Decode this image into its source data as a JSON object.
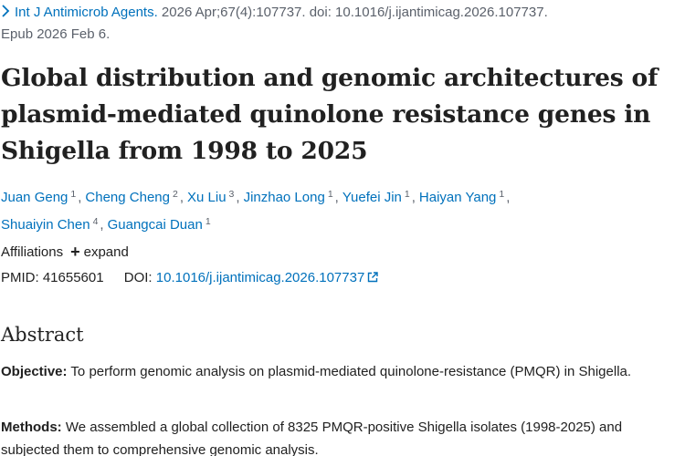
{
  "citation": {
    "journal": "Int J Antimicrob Agents.",
    "details_line1": " 2026 Apr;67(4):107737. doi: 10.1016/j.ijantimicag.2026.107737.",
    "details_line2": "Epub 2026 Feb 6."
  },
  "article": {
    "title": "Global distribution and genomic architectures of plasmid-mediated quinolone resistance genes in Shigella from 1998 to 2025"
  },
  "authors": [
    {
      "name": "Juan Geng",
      "aff": "1"
    },
    {
      "name": "Cheng Cheng",
      "aff": "2"
    },
    {
      "name": "Xu Liu",
      "aff": "3"
    },
    {
      "name": "Jinzhao Long",
      "aff": "1"
    },
    {
      "name": "Yuefei Jin",
      "aff": "1"
    },
    {
      "name": "Haiyan Yang",
      "aff": "1"
    },
    {
      "name": "Shuaiyin Chen",
      "aff": "4"
    },
    {
      "name": "Guangcai Duan",
      "aff": "1"
    }
  ],
  "affiliations": {
    "label": "Affiliations",
    "expand_label": "expand"
  },
  "ids": {
    "pmid_label": "PMID:",
    "pmid": "41655601",
    "doi_label": "DOI:",
    "doi": "10.1016/j.ijantimicag.2026.107737"
  },
  "abstract": {
    "heading": "Abstract",
    "objective_label": "Objective:",
    "objective_text": " To perform genomic analysis on plasmid-mediated quinolone-resistance (PMQR) in Shigella.",
    "methods_label": "Methods:",
    "methods_text": " We assembled a global collection of 8325 PMQR-positive Shigella isolates (1998-2025) and subjected them to comprehensive genomic analysis."
  },
  "icons": {
    "citation_chevron": "chevron-right-icon",
    "expand": "plus-icon",
    "doi_link": "external-link-icon"
  },
  "colors": {
    "link": "#0071bc",
    "text": "#212121",
    "muted": "#5b616b"
  }
}
